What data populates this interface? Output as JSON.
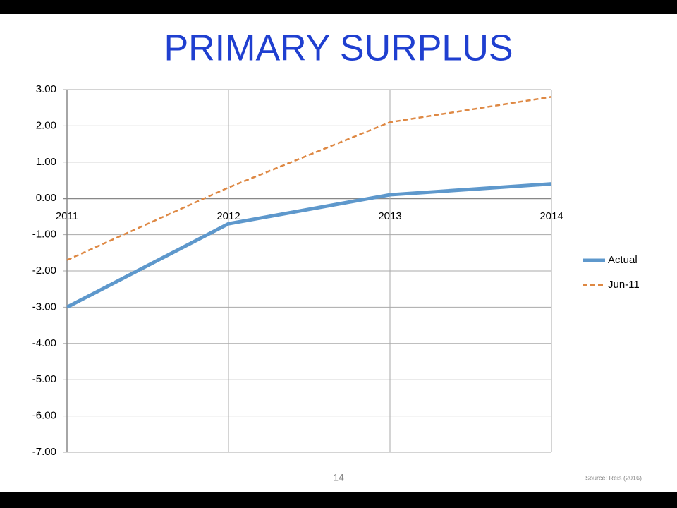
{
  "chart_data": {
    "type": "line",
    "title": "PRIMARY SURPLUS",
    "x": [
      2011,
      2012,
      2013,
      2014
    ],
    "series": [
      {
        "name": "Actual",
        "color": "#5e98cc",
        "values": [
          -3.0,
          -0.7,
          0.1,
          0.4
        ],
        "dashed": false
      },
      {
        "name": "Jun-11",
        "color": "#de8843",
        "values": [
          -1.7,
          0.3,
          2.1,
          2.8
        ],
        "dashed": true
      }
    ],
    "xlim": [
      2011,
      2014
    ],
    "xticks": [
      2011,
      2012,
      2013,
      2014
    ],
    "ylim": [
      -7,
      3
    ],
    "yticks": [
      {
        "value": 3,
        "label": "3.00"
      },
      {
        "value": 2,
        "label": "2.00"
      },
      {
        "value": 1,
        "label": "1.00"
      },
      {
        "value": 0,
        "label": "0.00"
      },
      {
        "value": -1,
        "label": "-1.00"
      },
      {
        "value": -2,
        "label": "-2.00"
      },
      {
        "value": -3,
        "label": "-3.00"
      },
      {
        "value": -4,
        "label": "-4.00"
      },
      {
        "value": -5,
        "label": "-5.00"
      },
      {
        "value": -6,
        "label": "-6.00"
      },
      {
        "value": -7,
        "label": "-7.00"
      }
    ],
    "grid": true,
    "legend": "right"
  },
  "page_number": "14",
  "source": "Source: Reis (2016)"
}
